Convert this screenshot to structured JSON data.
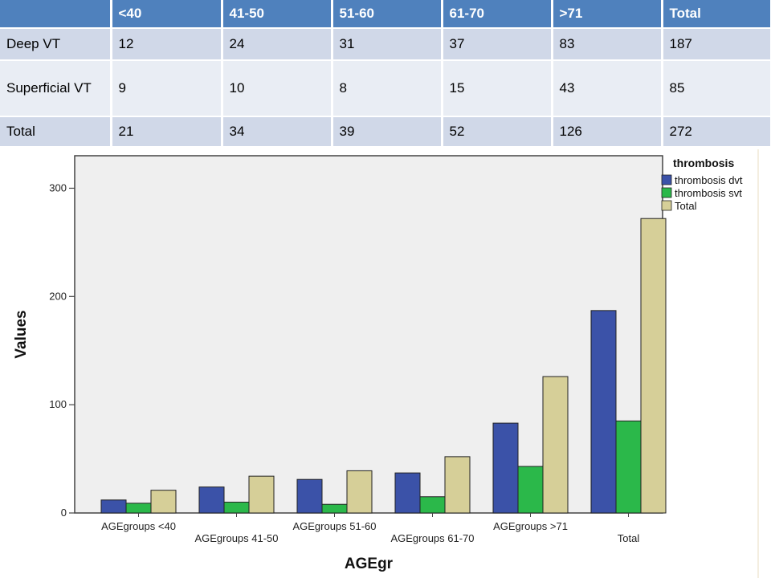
{
  "table": {
    "headers": [
      "",
      "<40",
      "41-50",
      "51-60",
      "61-70",
      ">71",
      "Total"
    ],
    "rows": [
      [
        "Deep VT",
        "12",
        "24",
        "31",
        "37",
        "83",
        "187"
      ],
      [
        "Superficial VT",
        "9",
        "10",
        "8",
        "15",
        "43",
        "85"
      ],
      [
        "Total",
        "21",
        "34",
        "39",
        "52",
        "126",
        "272"
      ]
    ]
  },
  "chart_data": {
    "type": "bar",
    "categories": [
      "AGEgroups <40",
      "AGEgroups 41-50",
      "AGEgroups 51-60",
      "AGEgroups 61-70",
      "AGEgroups >71",
      "Total"
    ],
    "series": [
      {
        "name": "thrombosis dvt",
        "values": [
          12,
          24,
          31,
          37,
          83,
          187
        ],
        "color": "#3b52a8"
      },
      {
        "name": "thrombosis svt",
        "values": [
          9,
          10,
          8,
          15,
          43,
          85
        ],
        "color": "#2bb84a"
      },
      {
        "name": "Total",
        "values": [
          21,
          34,
          39,
          52,
          126,
          272
        ],
        "color": "#d6cf98"
      }
    ],
    "xlabel": "AGEgr",
    "ylabel": "Values",
    "ylim": [
      0,
      330
    ],
    "yticks": [
      0,
      100,
      200,
      300
    ],
    "legend_title": "thrombosis",
    "legend_position": "top-right",
    "plot_background": "#efefef",
    "grid": false
  }
}
